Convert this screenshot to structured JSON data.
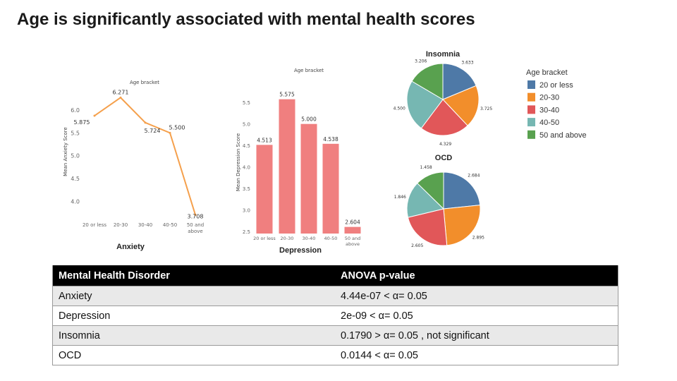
{
  "title": "Age is significantly associated with mental health scores",
  "colors": {
    "line": "#f5a04c",
    "bar": "#f07f7f",
    "pie": [
      "#4e79a7",
      "#f28e2b",
      "#e15759",
      "#76b7b2",
      "#59a14f"
    ]
  },
  "chart_data": [
    {
      "type": "line",
      "title": "Anxiety",
      "subtitle": "Age bracket",
      "ylabel": "Mean Anxiety Score",
      "categories": [
        "20 or less",
        "20-30",
        "30-40",
        "40-50",
        "50 and above"
      ],
      "values": [
        5.875,
        6.271,
        5.724,
        5.5,
        3.708
      ],
      "labels": [
        "5.875",
        "6.271",
        "5.724",
        "5.500",
        "3.708"
      ],
      "yticks": [
        "4.0",
        "4.5",
        "5.0",
        "5.5",
        "6.0"
      ],
      "ylim": [
        3.7,
        6.4
      ],
      "grid": false
    },
    {
      "type": "bar",
      "title": "Depression",
      "subtitle": "Age bracket",
      "ylabel": "Mean Depression Score",
      "categories": [
        "20 or less",
        "20-30",
        "30-40",
        "40-50",
        "50 and above"
      ],
      "values": [
        4.513,
        5.575,
        5.0,
        4.538,
        2.604
      ],
      "labels": [
        "4.513",
        "5.575",
        "5.000",
        "4.538",
        "2.604"
      ],
      "yticks": [
        "2.5",
        "3.0",
        "3.5",
        "4.0",
        "4.5",
        "5.0",
        "5.5"
      ],
      "ylim": [
        2.45,
        5.75
      ],
      "grid": false
    },
    {
      "type": "pie",
      "title": "Insomnia",
      "categories": [
        "20 or less",
        "20-30",
        "30-40",
        "40-50",
        "50 and above"
      ],
      "values": [
        3.633,
        3.725,
        4.329,
        4.5,
        3.206
      ],
      "labels": [
        "3.633",
        "3.725",
        "4.329",
        "4.500",
        "3.206"
      ]
    },
    {
      "type": "pie",
      "title": "OCD",
      "categories": [
        "20 or less",
        "20-30",
        "30-40",
        "40-50",
        "50 and above"
      ],
      "values": [
        2.684,
        2.895,
        2.605,
        1.846,
        1.458
      ],
      "labels": [
        "2.684",
        "2.895",
        "2.605",
        "1.846",
        "1.458"
      ]
    }
  ],
  "legend": {
    "title": "Age bracket",
    "items": [
      "20 or less",
      "20-30",
      "30-40",
      "40-50",
      "50 and above"
    ]
  },
  "table": {
    "headers": [
      "Mental Health Disorder",
      "ANOVA p-value"
    ],
    "rows": [
      [
        "Anxiety",
        "4.44e-07 <  α= 0.05"
      ],
      [
        "Depression",
        "2e-09 < α= 0.05"
      ],
      [
        "Insomnia",
        "0.1790 > α= 0.05 , not significant"
      ],
      [
        "OCD",
        "0.0144 < α= 0.05"
      ]
    ]
  }
}
